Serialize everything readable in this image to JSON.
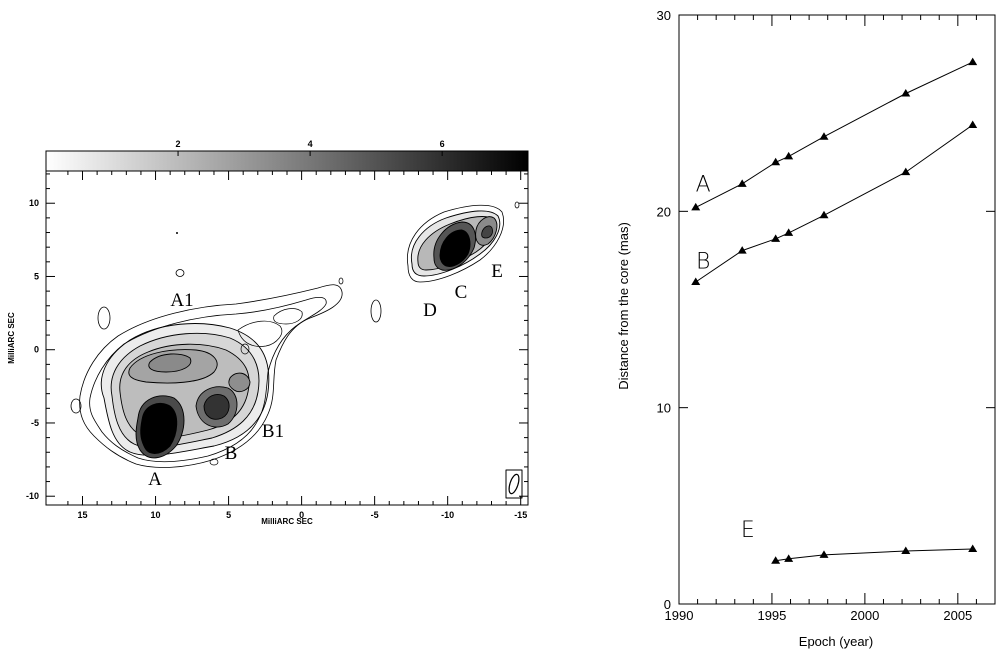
{
  "left_panel": {
    "colorbar": {
      "ticks": [
        "2",
        "4",
        "6"
      ],
      "values": [
        2,
        4,
        6
      ],
      "range": [
        0,
        7.3
      ]
    },
    "x_axis": {
      "label": "MilliARC SEC",
      "ticks": [
        "15",
        "10",
        "5",
        "0",
        "-5",
        "-10",
        "-15"
      ],
      "values": [
        15,
        10,
        5,
        0,
        -5,
        -10,
        -15
      ],
      "range": [
        17.5,
        -15.5
      ]
    },
    "y_axis": {
      "label": "MilliARC SEC",
      "ticks": [
        "10",
        "5",
        "0",
        "-5",
        "-10"
      ],
      "values": [
        10,
        5,
        0,
        -5,
        -10
      ],
      "range": [
        -10.6,
        12.2
      ]
    },
    "components": [
      {
        "label": "A1",
        "x": 9.2,
        "y": 2.5
      },
      {
        "label": "A",
        "x": 10.2,
        "y": -8.2
      },
      {
        "label": "B",
        "x": 4.6,
        "y": -6.7
      },
      {
        "label": "B1",
        "x": 1.7,
        "y": -4.6
      },
      {
        "label": "D",
        "x": -8.3,
        "y": 2.7
      },
      {
        "label": "C",
        "x": -10.8,
        "y": 3.5
      },
      {
        "label": "E",
        "x": -13.4,
        "y": 4.9
      }
    ]
  },
  "chart_data": {
    "type": "line",
    "title": "",
    "xlabel": "Epoch (year)",
    "ylabel": "Distance from the core (mas)",
    "xlim": [
      1990,
      2007
    ],
    "ylim": [
      0,
      30
    ],
    "x_ticks": [
      1990,
      1995,
      2000,
      2005
    ],
    "y_ticks": [
      0,
      10,
      20,
      30
    ],
    "grid": false,
    "series": [
      {
        "name": "A",
        "x": [
          1990.9,
          1993.4,
          1995.2,
          1995.9,
          1997.8,
          2002.2,
          2005.8
        ],
        "y": [
          20.2,
          21.4,
          22.5,
          22.8,
          23.8,
          26.0,
          27.6
        ]
      },
      {
        "name": "B",
        "x": [
          1990.9,
          1993.4,
          1995.2,
          1995.9,
          1997.8,
          2002.2,
          2005.8
        ],
        "y": [
          16.4,
          18.0,
          18.6,
          18.9,
          19.8,
          22.0,
          24.4
        ]
      },
      {
        "name": "E",
        "x": [
          1995.2,
          1995.9,
          1997.8,
          2002.2,
          2005.8
        ],
        "y": [
          2.2,
          2.3,
          2.5,
          2.7,
          2.8
        ]
      }
    ]
  }
}
